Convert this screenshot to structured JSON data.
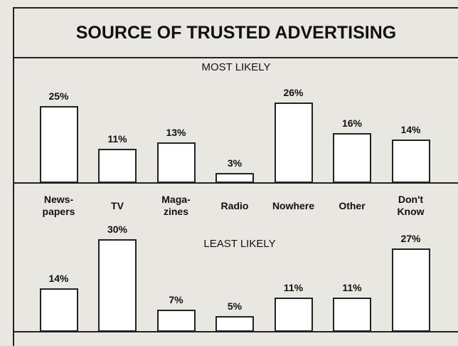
{
  "title": "SOURCE OF TRUSTED ADVERTISING",
  "chart_data": [
    {
      "type": "bar",
      "title": "MOST LIKELY",
      "categories": [
        "News-\npapers",
        "TV",
        "Maga-\nzines",
        "Radio",
        "Nowhere",
        "Other",
        "Don't\nKnow"
      ],
      "values": [
        25,
        11,
        13,
        3,
        26,
        16,
        14
      ],
      "value_labels": [
        "25%",
        "11%",
        "13%",
        "3%",
        "26%",
        "16%",
        "14%"
      ],
      "color": "#ffffff"
    },
    {
      "type": "bar",
      "title": "LEAST LIKELY",
      "values": [
        14,
        30,
        7,
        5,
        11,
        11,
        27
      ],
      "value_labels": [
        "14%",
        "30%",
        "7%",
        "5%",
        "11%",
        "11%",
        "27%"
      ],
      "color": "#ffffff"
    }
  ]
}
